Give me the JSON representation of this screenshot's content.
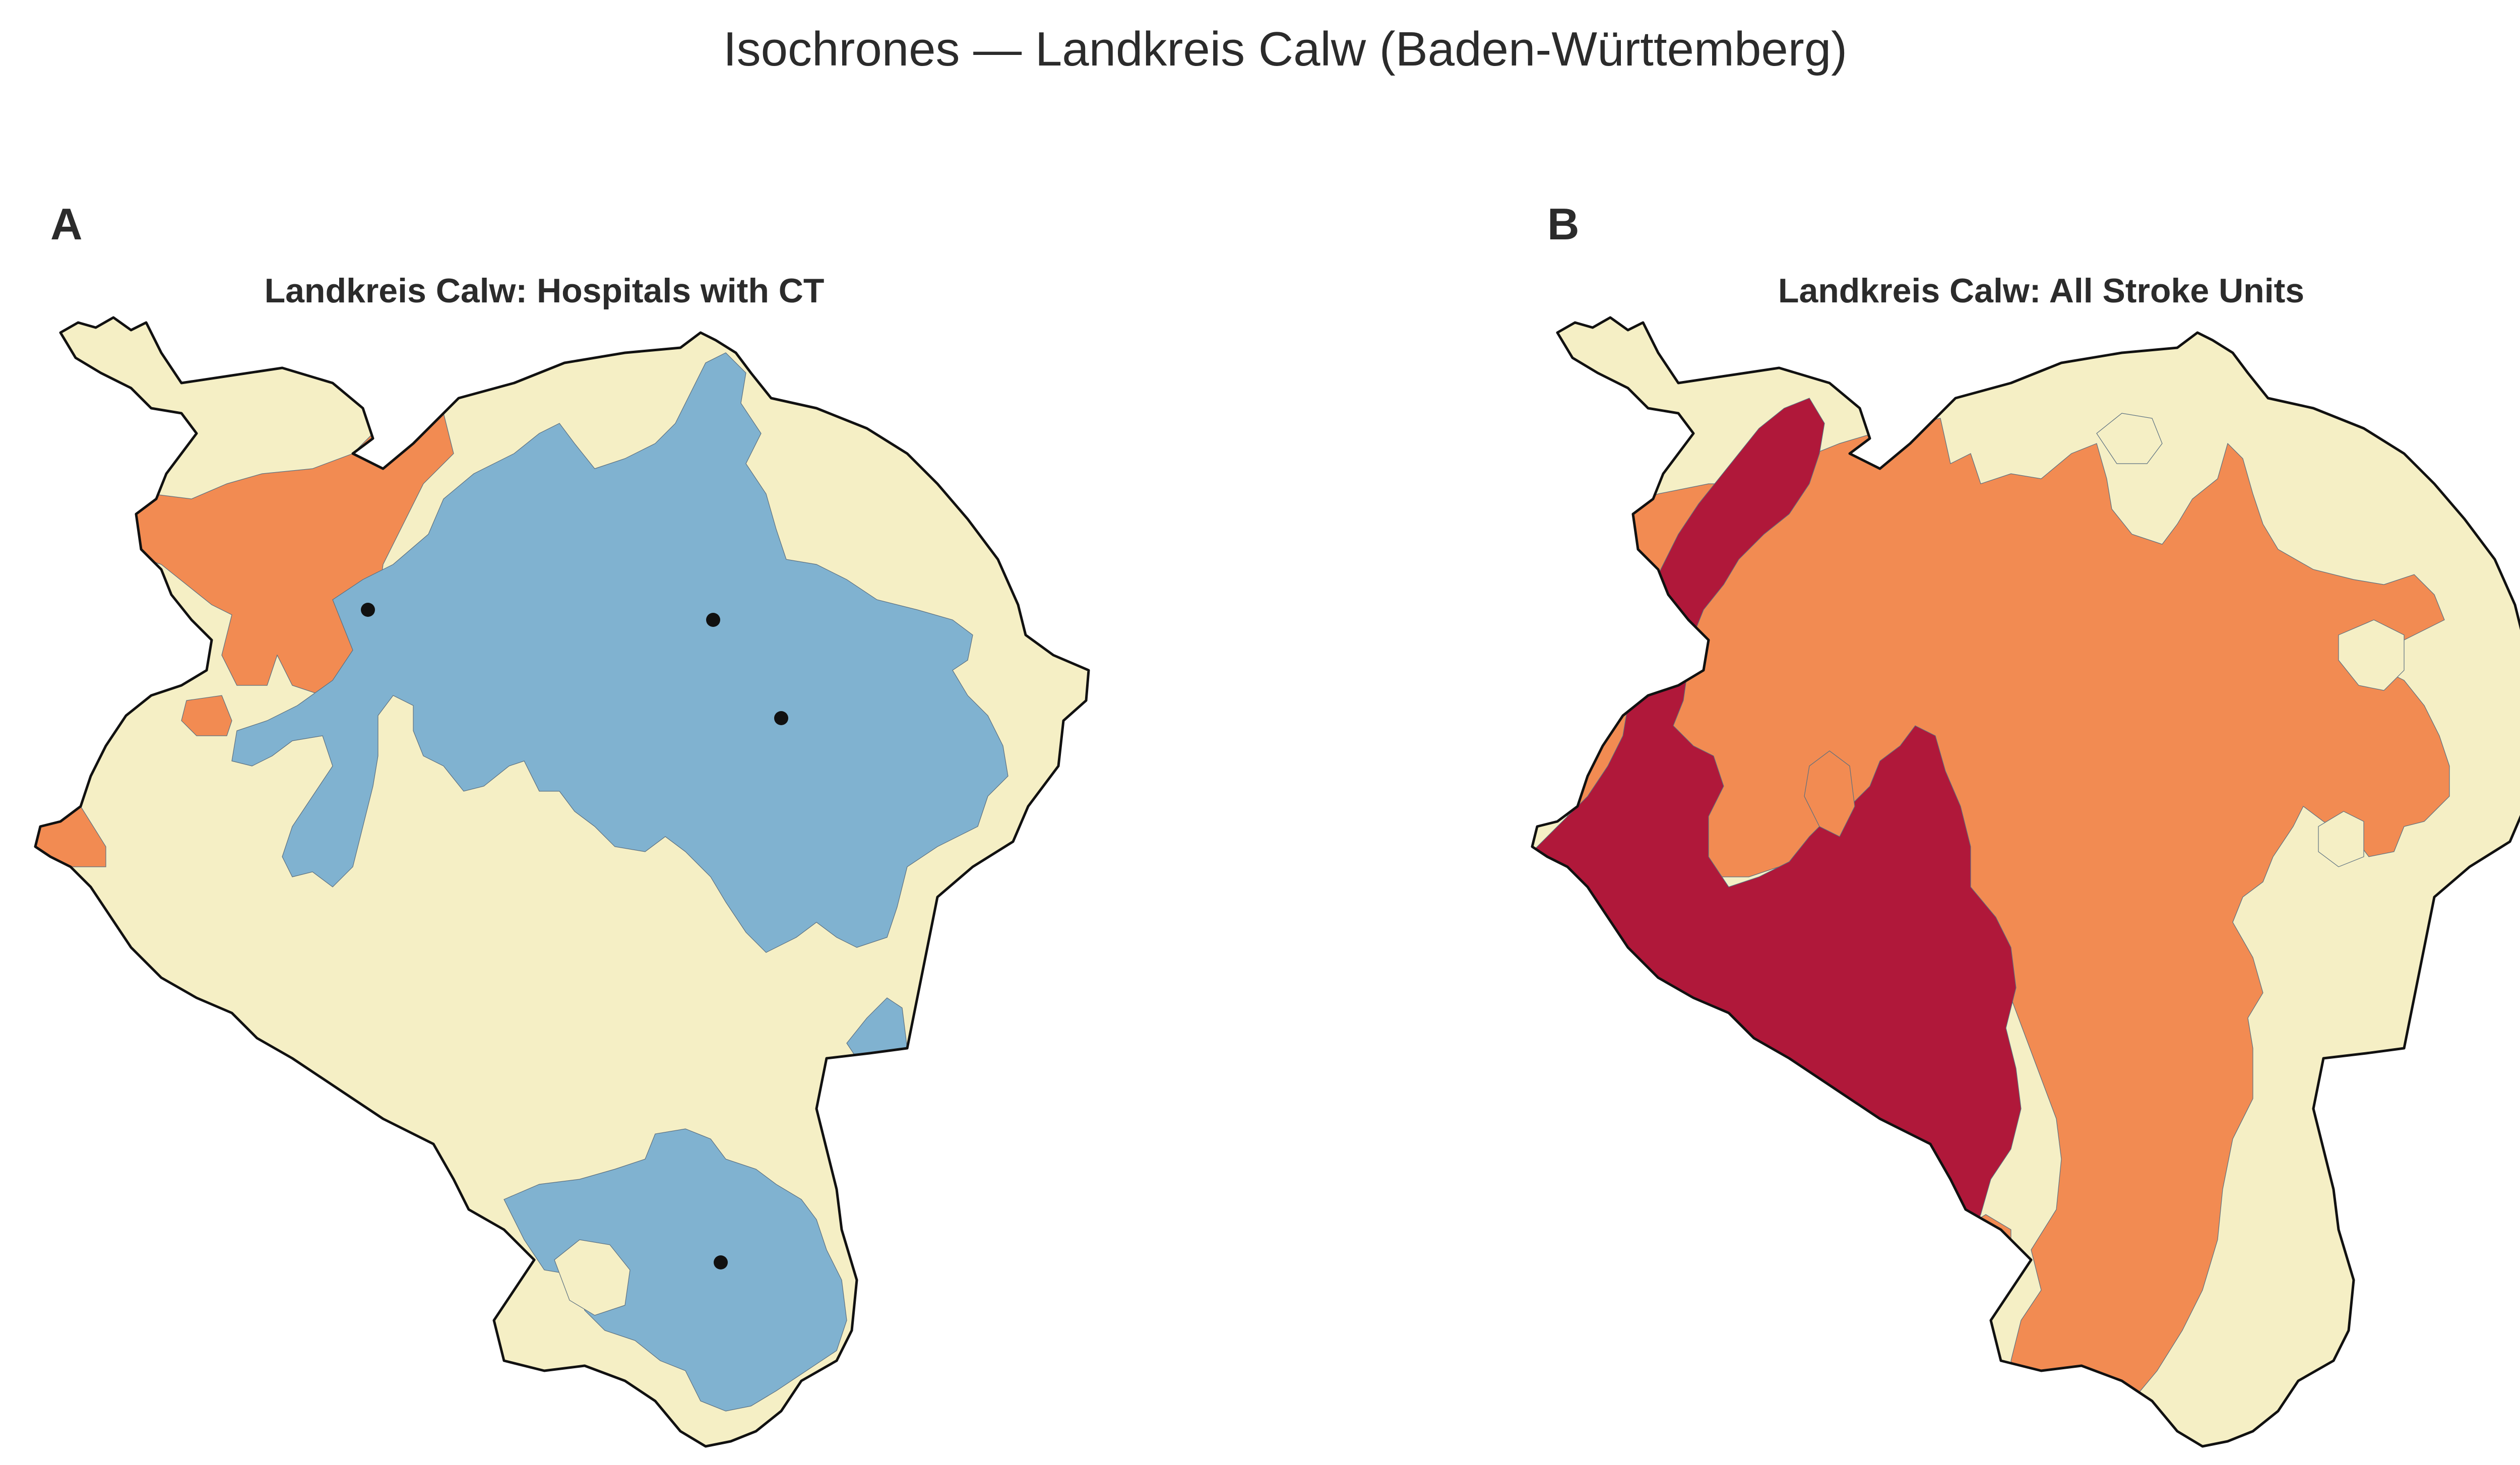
{
  "figure": {
    "title": "Isochrones — Landkreis Calw (Baden-Württemberg)"
  },
  "colors": {
    "zone_within": "#80b2d0",
    "zone_near": "#f28b52",
    "zone_mid": "#f28b52",
    "zone_far": "#f5efc5",
    "zone_best": "#b0183a",
    "outside": "#ffffff",
    "outline": "#111111",
    "hospital_marker": "#111111"
  },
  "panels": [
    {
      "letter": "A",
      "title": "Landkreis Calw: Hospitals with CT",
      "hospital_count": 4
    },
    {
      "letter": "B",
      "title": "Landkreis Calw: All Stroke Units",
      "hospital_count": 0
    }
  ]
}
